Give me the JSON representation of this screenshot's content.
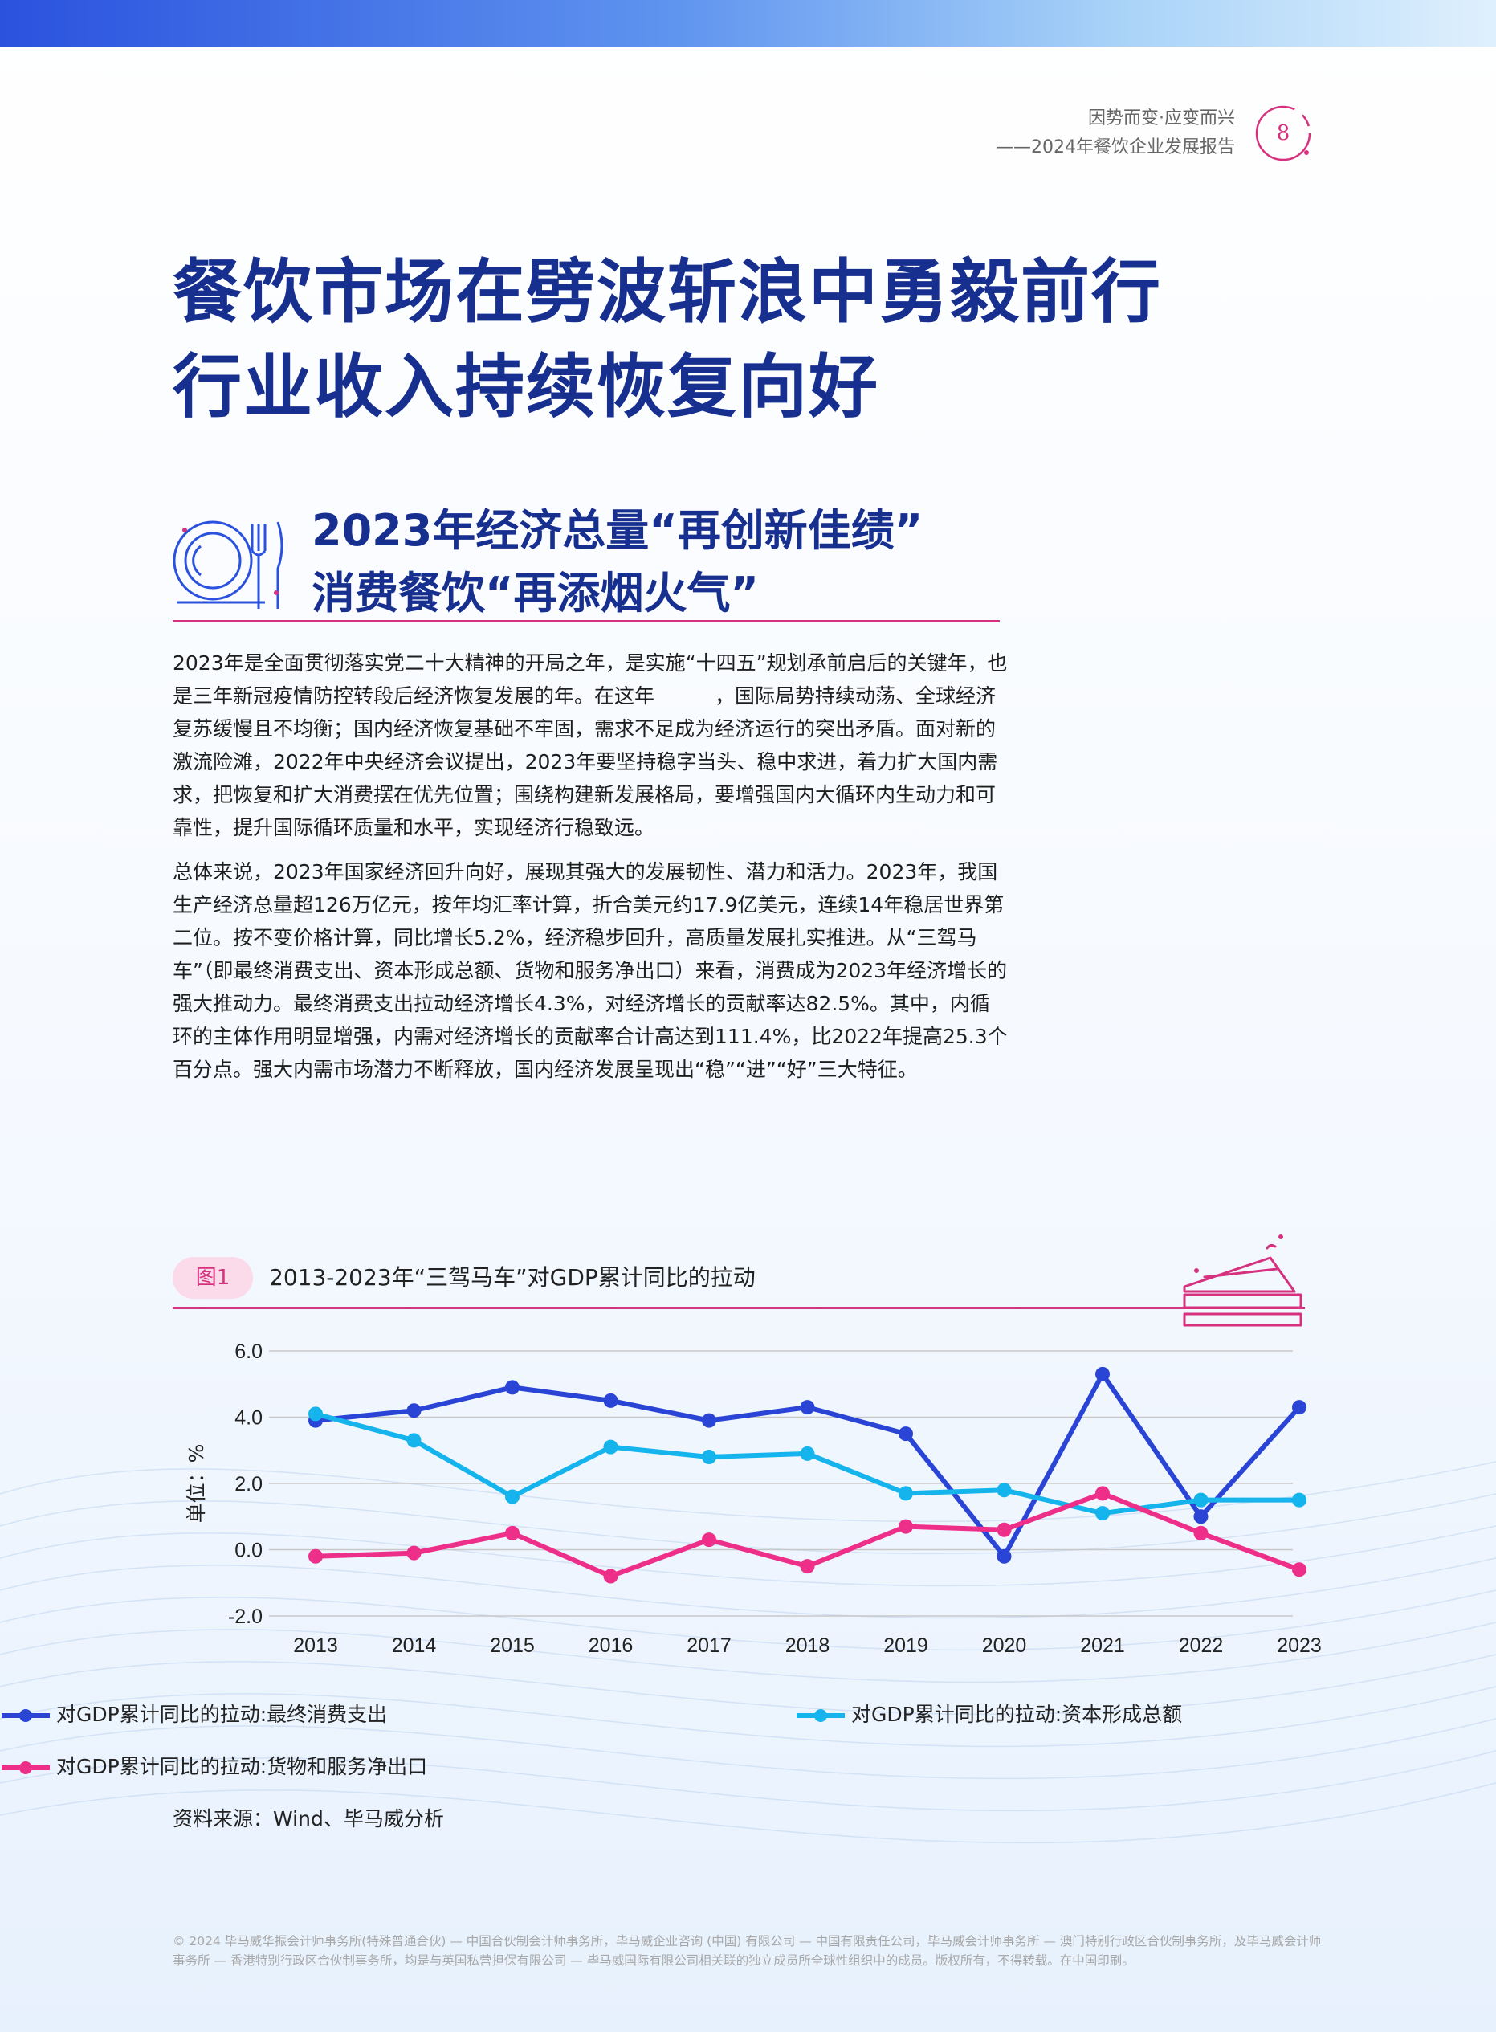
{
  "header": {
    "line1": "因势而变·应变而兴",
    "line2": "——2024年餐饮企业发展报告",
    "page_number": "8"
  },
  "title": {
    "line1": "餐饮市场在劈波斩浪中勇毅前行",
    "line2": "行业收入持续恢复向好"
  },
  "section": {
    "line1": "2023年经济总量“再创新佳绩”",
    "line2": "消费餐饮“再添烟火气”"
  },
  "paragraphs": [
    "2023年是全面贯彻落实党二十大精神的开局之年，是实施“十四五”规划承前启后的关键年，也是三年新冠疫情防控转段后经济恢复发展的年。在这年　　　，国际局势持续动荡、全球经济复苏缓慢且不均衡；国内经济恢复基础不牢固，需求不足成为经济运行的突出矛盾。面对新的激流险滩，2022年中央经济会议提出，2023年要坚持稳字当头、稳中求进，着力扩大国内需求，把恢复和扩大消费摆在优先位置；围绕构建新发展格局，要增强国内大循环内生动力和可靠性，提升国际循环质量和水平，实现经济行稳致远。",
    "总体来说，2023年国家经济回升向好，展现其强大的发展韧性、潜力和活力。2023年，我国生产经济总量超126万亿元，按年均汇率计算，折合美元约17.9亿美元，连续14年稳居世界第二位。按不变价格计算，同比增长5.2%，经济稳步回升，高质量发展扎实推进。从“三驾马车”（即最终消费支出、资本形成总额、货物和服务净出口）来看，消费成为2023年经济增长的强大推动力。最终消费支出拉动经济增长4.3%，对经济增长的贡献率达82.5%。其中，内循环的主体作用明显增强，内需对经济增长的贡献率合计高达到111.4%，比2022年提高25.3个百分点。强大内需市场潜力不断释放，国内经济发展呈现出“稳”“进”“好”三大特征。"
  ],
  "figure": {
    "label": "图1",
    "title": "2013-2023年“三驾马车”对GDP累计同比的拉动"
  },
  "chart_data": {
    "type": "line",
    "title": "2013-2023年“三驾马车”对GDP累计同比的拉动",
    "ylabel": "单位：%",
    "xlabel": "",
    "x": [
      "2013",
      "2014",
      "2015",
      "2016",
      "2017",
      "2018",
      "2019",
      "2020",
      "2021",
      "2022",
      "2023"
    ],
    "ylim": [
      -2.0,
      6.0
    ],
    "yticks": [
      "6.0",
      "4.0",
      "2.0",
      "0.0",
      "-2.0"
    ],
    "grid": true,
    "legend_position": "bottom",
    "series": [
      {
        "name": "对GDP累计同比的拉动:最终消费支出",
        "color": "#2a45d6",
        "values": [
          3.9,
          4.2,
          4.9,
          4.5,
          3.9,
          4.3,
          3.5,
          -0.2,
          5.3,
          1.0,
          4.3
        ]
      },
      {
        "name": "对GDP累计同比的拉动:资本形成总额",
        "color": "#15b4ec",
        "values": [
          4.1,
          3.3,
          1.6,
          3.1,
          2.8,
          2.9,
          1.7,
          1.8,
          1.1,
          1.5,
          1.5
        ]
      },
      {
        "name": "对GDP累计同比的拉动:货物和服务净出口",
        "color": "#ee2f8a",
        "values": [
          -0.2,
          -0.1,
          0.5,
          -0.8,
          0.3,
          -0.5,
          0.7,
          0.6,
          1.7,
          0.5,
          -0.6
        ]
      }
    ]
  },
  "source": "资料来源：Wind、毕马威分析",
  "footer": "© 2024 毕马威华振会计师事务所(特殊普通合伙) — 中国合伙制会计师事务所，毕马威企业咨询 (中国) 有限公司 — 中国有限责任公司，毕马威会计师事务所 — 澳门特别行政区合伙制事务所，及毕马威会计师事务所 — 香港特别行政区合伙制事务所，均是与英国私营担保有限公司 — 毕马威国际有限公司相关联的独立成员所全球性组织中的成员。版权所有，不得转载。在中国印刷。",
  "colors": {
    "brand_navy": "#172f8f",
    "accent_pink": "#d6317f"
  }
}
